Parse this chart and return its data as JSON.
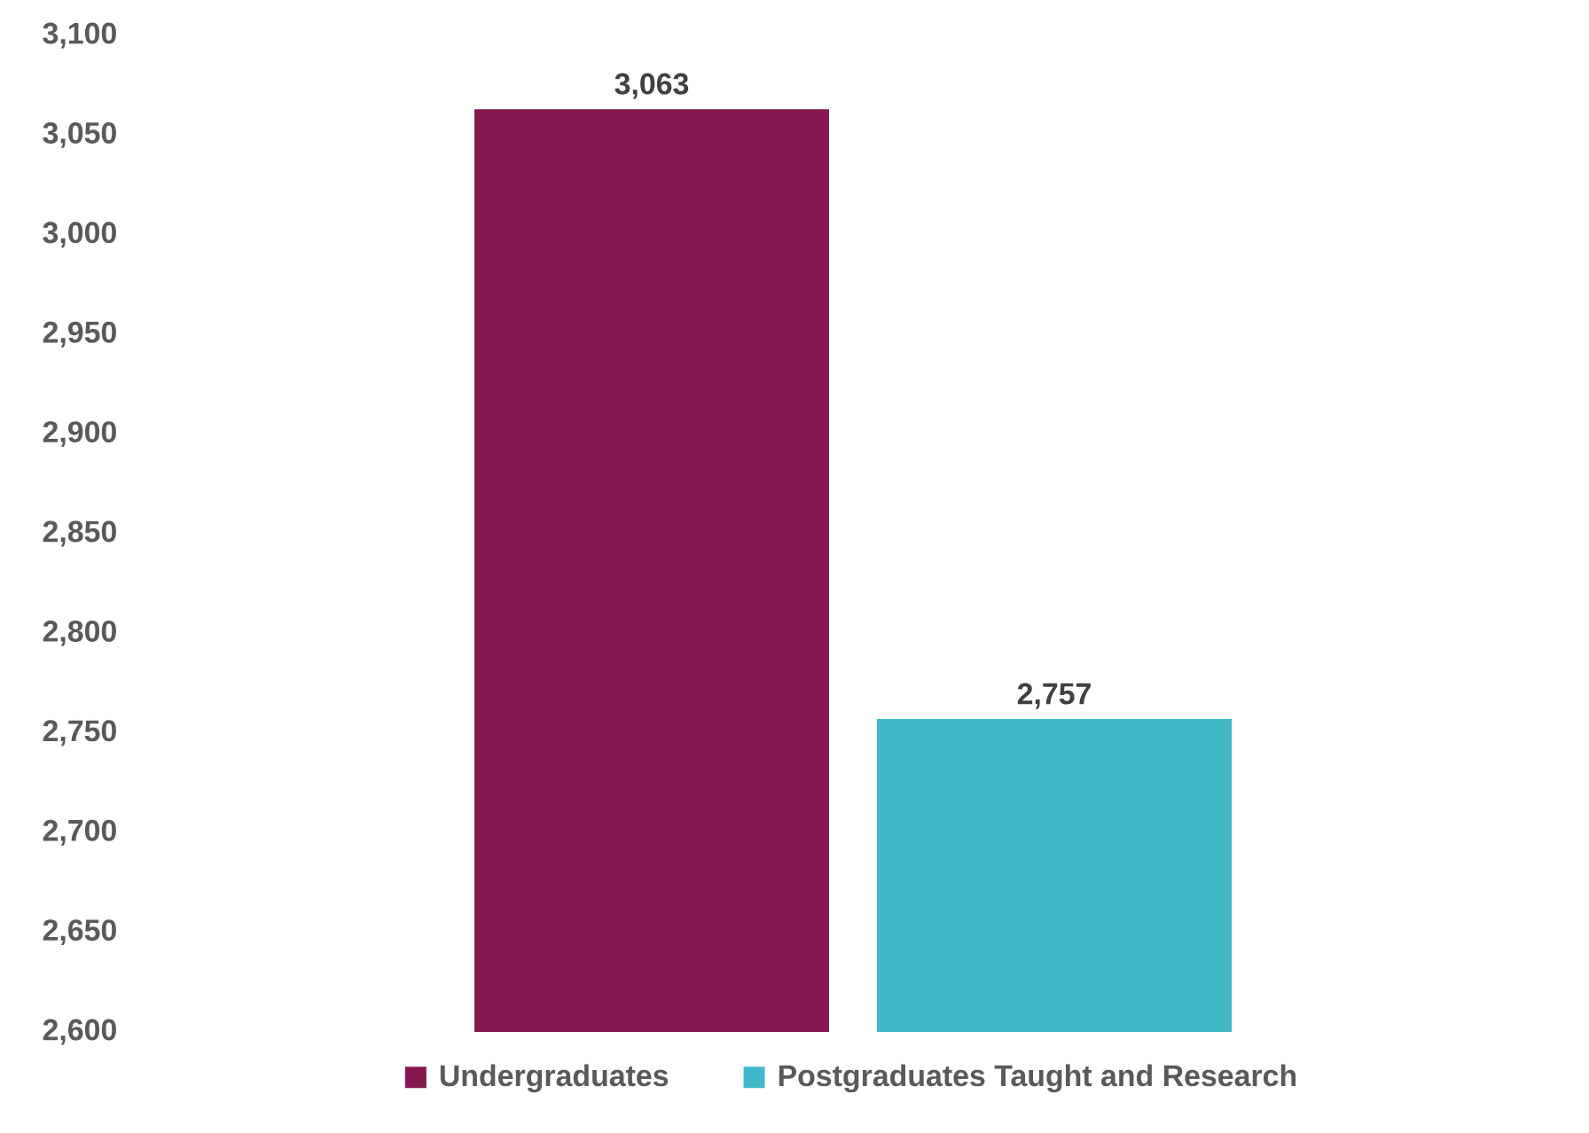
{
  "chart_data": {
    "type": "bar",
    "categories": [
      null
    ],
    "series": [
      {
        "name": "Undergraduates",
        "color": "#85164f",
        "values": [
          3063
        ],
        "value_labels": [
          "3,063"
        ]
      },
      {
        "name": "Postgraduates Taught and Research",
        "color": "#41b8c8",
        "values": [
          2757
        ],
        "value_labels": [
          "2,757"
        ]
      }
    ],
    "ylim": [
      2600,
      3100
    ],
    "yticks": [
      {
        "value": 2600,
        "label": "2,600"
      },
      {
        "value": 2650,
        "label": "2,650"
      },
      {
        "value": 2700,
        "label": "2,700"
      },
      {
        "value": 2750,
        "label": "2,750"
      },
      {
        "value": 2800,
        "label": "2,800"
      },
      {
        "value": 2850,
        "label": "2,850"
      },
      {
        "value": 2900,
        "label": "2,900"
      },
      {
        "value": 2950,
        "label": "2,950"
      },
      {
        "value": 3000,
        "label": "3,000"
      },
      {
        "value": 3050,
        "label": "3,050"
      },
      {
        "value": 3100,
        "label": "3,100"
      }
    ],
    "legend": "bottom",
    "grid": false
  }
}
